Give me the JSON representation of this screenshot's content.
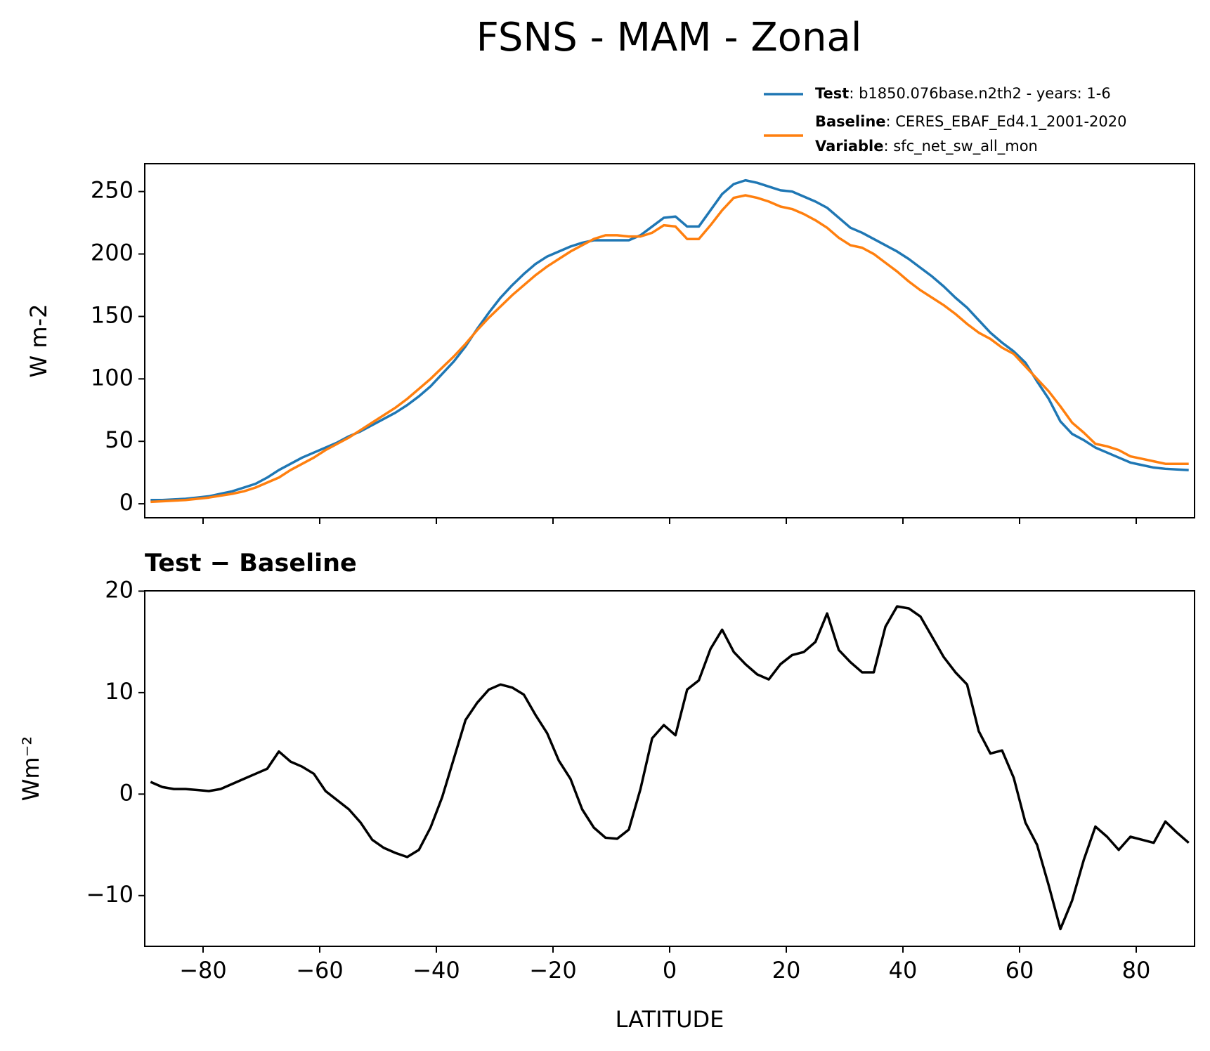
{
  "chart_data": [
    {
      "type": "line",
      "title": "FSNS - MAM - Zonal",
      "ylabel": "W m-2",
      "x": [
        -89,
        -87,
        -85,
        -83,
        -81,
        -79,
        -77,
        -75,
        -73,
        -71,
        -69,
        -67,
        -65,
        -63,
        -61,
        -59,
        -57,
        -55,
        -53,
        -51,
        -49,
        -47,
        -45,
        -43,
        -41,
        -39,
        -37,
        -35,
        -33,
        -31,
        -29,
        -27,
        -25,
        -23,
        -21,
        -19,
        -17,
        -15,
        -13,
        -11,
        -9,
        -7,
        -5,
        -3,
        -1,
        1,
        3,
        5,
        7,
        9,
        11,
        13,
        15,
        17,
        19,
        21,
        23,
        25,
        27,
        29,
        31,
        33,
        35,
        37,
        39,
        41,
        43,
        45,
        47,
        49,
        51,
        53,
        55,
        57,
        59,
        61,
        63,
        65,
        67,
        69,
        71,
        73,
        75,
        77,
        79,
        81,
        83,
        85,
        87,
        89
      ],
      "series": [
        {
          "name": "Test",
          "description": ": b1850.076base.n2th2 - years: 1-6",
          "color": "#1f77b4",
          "values": [
            3,
            3,
            3.5,
            4,
            5,
            6,
            8,
            10,
            13,
            16,
            21,
            27,
            32,
            37,
            41,
            45,
            49,
            54,
            58,
            63,
            68,
            73,
            79,
            86,
            94,
            104,
            114,
            126,
            140,
            153,
            165,
            175,
            184,
            192,
            198,
            202,
            206,
            209,
            211,
            211,
            211,
            211,
            215,
            222,
            229,
            230,
            222,
            222,
            235,
            248,
            256,
            259,
            257,
            254,
            251,
            250,
            246,
            242,
            237,
            229,
            221,
            217,
            212,
            207,
            202,
            196,
            189,
            182,
            174,
            165,
            157,
            147,
            137,
            129,
            122,
            113,
            98,
            84,
            66,
            56,
            51,
            45,
            41,
            37,
            33,
            31,
            29,
            28,
            27.5,
            27
          ]
        },
        {
          "name": "Baseline",
          "description": ": CERES_EBAF_Ed4.1_2001-2020",
          "color": "#ff7f0e",
          "values": [
            1.5,
            2,
            2.5,
            3,
            4,
            5,
            6.5,
            8,
            10,
            13,
            17,
            21,
            27,
            32,
            37,
            43,
            48,
            53,
            59,
            65,
            71,
            77,
            84,
            92,
            100,
            109,
            118,
            128,
            139,
            149,
            158,
            167,
            175,
            183,
            190,
            196,
            202,
            207,
            212,
            215,
            215,
            214,
            214,
            217,
            223,
            222,
            212,
            212,
            223,
            235,
            245,
            247,
            245,
            242,
            238,
            236,
            232,
            227,
            221,
            213,
            207,
            205,
            200,
            193,
            186,
            178,
            171,
            165,
            159,
            152,
            144,
            137,
            132,
            125,
            120,
            110,
            100,
            90,
            78,
            65,
            57,
            48,
            46,
            43,
            38,
            36,
            34,
            32,
            32,
            32
          ]
        }
      ],
      "variable": {
        "name": "Variable",
        "description": ": sfc_net_sw_all_mon"
      },
      "legend": "upper right",
      "xlim": [
        -90,
        90
      ],
      "xticks": [
        -80,
        -60,
        -40,
        -20,
        0,
        20,
        40,
        60,
        80
      ],
      "ylim": [
        -11.2,
        272.3
      ],
      "yticks": [
        0,
        50,
        100,
        150,
        200,
        250
      ]
    },
    {
      "type": "line",
      "subtitle": "Test − Baseline",
      "xlabel": "LATITUDE",
      "ylabel": "Wm⁻²",
      "x": [
        -89,
        -87,
        -85,
        -83,
        -81,
        -79,
        -77,
        -75,
        -73,
        -71,
        -69,
        -67,
        -65,
        -63,
        -61,
        -59,
        -57,
        -55,
        -53,
        -51,
        -49,
        -47,
        -45,
        -43,
        -41,
        -39,
        -37,
        -35,
        -33,
        -31,
        -29,
        -27,
        -25,
        -23,
        -21,
        -19,
        -17,
        -15,
        -13,
        -11,
        -9,
        -7,
        -5,
        -3,
        -1,
        1,
        3,
        5,
        7,
        9,
        11,
        13,
        15,
        17,
        19,
        21,
        23,
        25,
        27,
        29,
        31,
        33,
        35,
        37,
        39,
        41,
        43,
        45,
        47,
        49,
        51,
        53,
        55,
        57,
        59,
        61,
        63,
        65,
        67,
        69,
        71,
        73,
        75,
        77,
        79,
        81,
        83,
        85,
        87,
        89
      ],
      "color": "#000000",
      "values": [
        1.2,
        0.7,
        0.5,
        0.5,
        0.4,
        0.3,
        0.5,
        1,
        1.5,
        2,
        2.5,
        4.2,
        3.2,
        2.7,
        2,
        0.3,
        -0.6,
        -1.5,
        -2.8,
        -4.5,
        -5.3,
        -5.8,
        -6.2,
        -5.5,
        -3.3,
        -0.3,
        3.5,
        7.3,
        9,
        10.3,
        10.8,
        10.5,
        9.8,
        7.8,
        6,
        3.3,
        1.5,
        -1.5,
        -3.3,
        -4.3,
        -4.4,
        -3.5,
        0.5,
        5.5,
        6.8,
        5.8,
        10.3,
        11.2,
        14.3,
        16.2,
        14,
        12.8,
        11.8,
        11.3,
        12.8,
        13.7,
        14,
        15,
        17.8,
        14.2,
        13,
        12,
        12,
        16.5,
        18.5,
        18.3,
        17.5,
        15.5,
        13.5,
        12,
        10.8,
        6.2,
        4,
        4.3,
        1.6,
        -2.8,
        -5,
        -9,
        -13.3,
        -10.5,
        -6.5,
        -3.2,
        -4.2,
        -5.5,
        -4.2,
        -4.5,
        -4.8,
        -2.7,
        -3.8,
        -4.8
      ],
      "xlim": [
        -90,
        90
      ],
      "xticks": [
        {
          "value": -80,
          "label": "−80"
        },
        {
          "value": -60,
          "label": "−60"
        },
        {
          "value": -40,
          "label": "−40"
        },
        {
          "value": -20,
          "label": "−20"
        },
        0,
        20,
        40,
        60,
        80
      ],
      "ylim": [
        -15,
        20.03
      ],
      "yticks": [
        {
          "value": -10,
          "label": "−10"
        },
        0,
        10,
        20
      ]
    }
  ]
}
